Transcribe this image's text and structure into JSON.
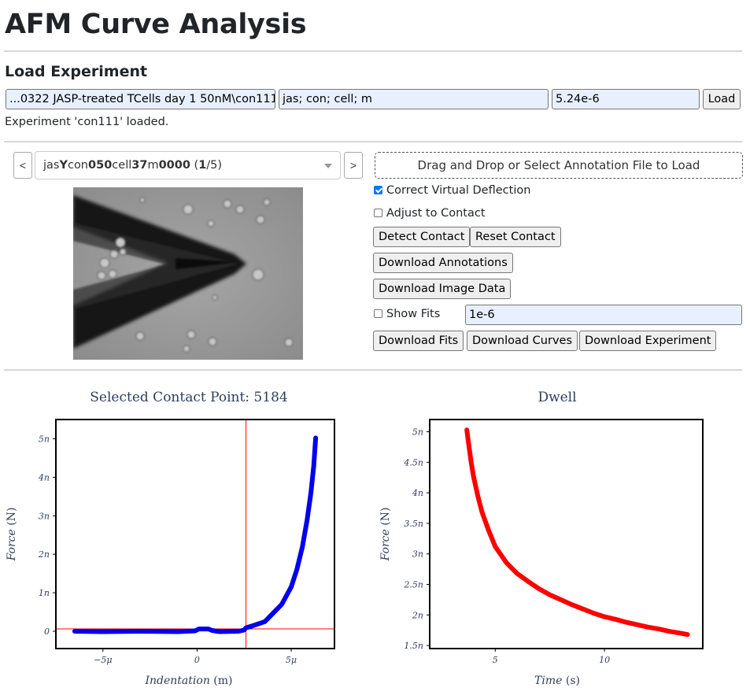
{
  "app": {
    "title": "AFM Curve Analysis"
  },
  "load": {
    "heading": "Load Experiment",
    "path_value": "...0322 JASP-treated TCells day 1 50nM\\con111",
    "pattern_value": "jas; con; cell; m",
    "k_value": "5.24e-6",
    "load_label": "Load",
    "status": "Experiment 'con111' loaded."
  },
  "curve_nav": {
    "prev_label": "<",
    "next_label": ">",
    "selected": {
      "parts": [
        {
          "text": "jas",
          "bold": false
        },
        {
          "text": "Y",
          "bold": true
        },
        {
          "text": "con",
          "bold": false
        },
        {
          "text": "050",
          "bold": true
        },
        {
          "text": "cell",
          "bold": false
        },
        {
          "text": "37",
          "bold": true
        },
        {
          "text": "m",
          "bold": false
        },
        {
          "text": "0000",
          "bold": true
        },
        {
          "text": " (",
          "bold": false
        },
        {
          "text": "1",
          "bold": true
        },
        {
          "text": "/5)",
          "bold": false
        }
      ]
    }
  },
  "annotations": {
    "drop_label": "Drag and Drop or Select Annotation File to Load",
    "correct_virtual_deflection": {
      "label": "Correct Virtual Deflection",
      "checked": true
    },
    "adjust_to_contact": {
      "label": "Adjust to Contact",
      "checked": false
    },
    "detect_contact_label": "Detect Contact",
    "reset_contact_label": "Reset Contact",
    "download_annotations_label": "Download Annotations",
    "download_image_data_label": "Download Image Data",
    "show_fits": {
      "label": "Show Fits",
      "checked": false
    },
    "fit_value": "1e-6",
    "download_fits_label": "Download Fits",
    "download_curves_label": "Download Curves",
    "download_experiment_label": "Download Experiment"
  },
  "charts": {
    "colors": {
      "approach": "#0000ee",
      "dwell": "#ff0000",
      "contact_line": "#ff0000",
      "axis": "#000000",
      "text": "#2f3e5b"
    }
  },
  "chart_data": [
    {
      "type": "line",
      "title": "Selected Contact Point: 5184",
      "xlabel": "Indentation (m)",
      "ylabel": "Force (N)",
      "xlim": [
        -7.5e-06,
        7.3e-06
      ],
      "ylim": [
        -4.5e-10,
        5.5e-09
      ],
      "xticks": [
        {
          "value": -5e-06,
          "label": "−5μ"
        },
        {
          "value": 0,
          "label": "0"
        },
        {
          "value": 5e-06,
          "label": "5μ"
        }
      ],
      "yticks": [
        {
          "value": 0,
          "label": "0"
        },
        {
          "value": 1e-09,
          "label": "1n"
        },
        {
          "value": 2e-09,
          "label": "2n"
        },
        {
          "value": 3e-09,
          "label": "3n"
        },
        {
          "value": 4e-09,
          "label": "4n"
        },
        {
          "value": 5e-09,
          "label": "5n"
        }
      ],
      "contact_point": {
        "x": 2.6e-06,
        "y": 6e-11
      },
      "series": [
        {
          "x": [
            -6.5e-06,
            -5e-06,
            -3e-06,
            -1e-06,
            -1e-07,
            1e-07,
            6e-07,
            8e-07,
            1.2e-06,
            2.2e-06,
            2.5e-06,
            2.6e-06,
            3e-06,
            3.6e-06,
            4e-06,
            4.5e-06,
            5e-06,
            5.3e-06,
            5.6e-06,
            5.85e-06,
            6.05e-06,
            6.2e-06,
            6.3e-06
          ],
          "y": [
            0,
            -1e-11,
            0,
            -1e-11,
            1e-11,
            6e-11,
            6e-11,
            2e-11,
            -1e-11,
            0,
            3e-11,
            9e-11,
            1.5e-10,
            2.5e-10,
            4.5e-10,
            7e-10,
            1.15e-09,
            1.6e-09,
            2.2e-09,
            2.9e-09,
            3.6e-09,
            4.3e-09,
            5.02e-09
          ]
        }
      ]
    },
    {
      "type": "line",
      "title": "Dwell",
      "xlabel": "Time (s)",
      "ylabel": "Force (N)",
      "xlim": [
        2.0,
        14.5
      ],
      "ylim": [
        1.45e-09,
        5.2e-09
      ],
      "xticks": [
        {
          "value": 5,
          "label": "5"
        },
        {
          "value": 10,
          "label": "10"
        }
      ],
      "yticks": [
        {
          "value": 1.5e-09,
          "label": "1.5n"
        },
        {
          "value": 2e-09,
          "label": "2n"
        },
        {
          "value": 2.5e-09,
          "label": "2.5n"
        },
        {
          "value": 3e-09,
          "label": "3n"
        },
        {
          "value": 3.5e-09,
          "label": "3.5n"
        },
        {
          "value": 4e-09,
          "label": "4n"
        },
        {
          "value": 4.5e-09,
          "label": "4.5n"
        },
        {
          "value": 5e-09,
          "label": "5n"
        }
      ],
      "series": [
        {
          "x": [
            3.7,
            3.8,
            3.9,
            4.0,
            4.2,
            4.4,
            4.7,
            5.0,
            5.5,
            6.0,
            6.5,
            7.0,
            7.5,
            8.0,
            8.5,
            9.0,
            9.5,
            10.0,
            10.5,
            11.0,
            11.5,
            12.0,
            12.5,
            13.0,
            13.5,
            13.8
          ],
          "y": [
            5.03e-09,
            4.75e-09,
            4.5e-09,
            4.28e-09,
            3.95e-09,
            3.68e-09,
            3.38e-09,
            3.12e-09,
            2.86e-09,
            2.68e-09,
            2.55e-09,
            2.43e-09,
            2.33e-09,
            2.25e-09,
            2.17e-09,
            2.1e-09,
            2.03e-09,
            1.97e-09,
            1.93e-09,
            1.88e-09,
            1.84e-09,
            1.8e-09,
            1.77e-09,
            1.73e-09,
            1.7e-09,
            1.68e-09
          ]
        }
      ]
    }
  ]
}
